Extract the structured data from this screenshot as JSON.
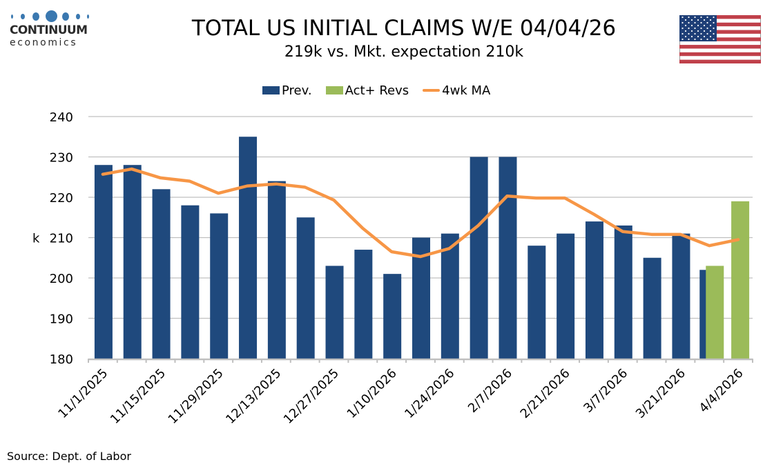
{
  "logo": {
    "name": "CONTINUUM",
    "sub": "economics"
  },
  "header": {
    "title": "TOTAL US INITIAL CLAIMS W/E 04/04/26",
    "subtitle": "219k vs. Mkt. expectation 210k"
  },
  "flag_icon": "us-flag-icon",
  "source": "Source: Dept. of Labor",
  "colors": {
    "prev": "#1f497d",
    "act": "#9bbb59",
    "ma": "#f79646",
    "grid": "#c0c0c0",
    "logo": "#3a78b0"
  },
  "chart_data": {
    "type": "bar",
    "title": "TOTAL US INITIAL CLAIMS W/E 04/04/26",
    "subtitle": "219k vs. Mkt. expectation 210k",
    "xlabel": "",
    "ylabel": "k",
    "ylim": [
      180,
      240
    ],
    "yticks": [
      180,
      190,
      200,
      210,
      220,
      230,
      240
    ],
    "grid": true,
    "legend_position": "top-center",
    "categories": [
      "11/1/2025",
      "11/8/2025",
      "11/15/2025",
      "11/22/2025",
      "11/29/2025",
      "12/6/2025",
      "12/13/2025",
      "12/20/2025",
      "12/27/2025",
      "1/3/2026",
      "1/10/2026",
      "1/17/2026",
      "1/24/2026",
      "1/31/2026",
      "2/7/2026",
      "2/14/2026",
      "2/21/2026",
      "2/28/2026",
      "3/7/2026",
      "3/14/2026",
      "3/21/2026",
      "3/28/2026",
      "4/4/2026"
    ],
    "tick_labels": [
      "11/1/2025",
      "11/15/2025",
      "11/29/2025",
      "12/13/2025",
      "12/27/2025",
      "1/10/2026",
      "1/24/2026",
      "2/7/2026",
      "2/21/2026",
      "3/7/2026",
      "3/21/2026",
      "4/4/2026"
    ],
    "series": [
      {
        "name": "Prev.",
        "type": "bar",
        "values": [
          228,
          228,
          222,
          218,
          216,
          235,
          224,
          215,
          203,
          207,
          201,
          210,
          211,
          230,
          230,
          208,
          211,
          214,
          213,
          205,
          211,
          202,
          null
        ]
      },
      {
        "name": "Act+ Revs",
        "type": "bar",
        "values": [
          null,
          null,
          null,
          null,
          null,
          null,
          null,
          null,
          null,
          null,
          null,
          null,
          null,
          null,
          null,
          null,
          null,
          null,
          null,
          null,
          null,
          203,
          219
        ]
      },
      {
        "name": "4wk MA",
        "type": "line",
        "values": [
          225.7,
          227.0,
          224.8,
          224.0,
          221.0,
          222.8,
          223.3,
          222.5,
          219.3,
          212.3,
          206.5,
          205.3,
          207.3,
          213.0,
          220.3,
          219.8,
          219.8,
          215.8,
          211.5,
          210.8,
          210.8,
          208.0,
          209.5
        ]
      }
    ]
  }
}
